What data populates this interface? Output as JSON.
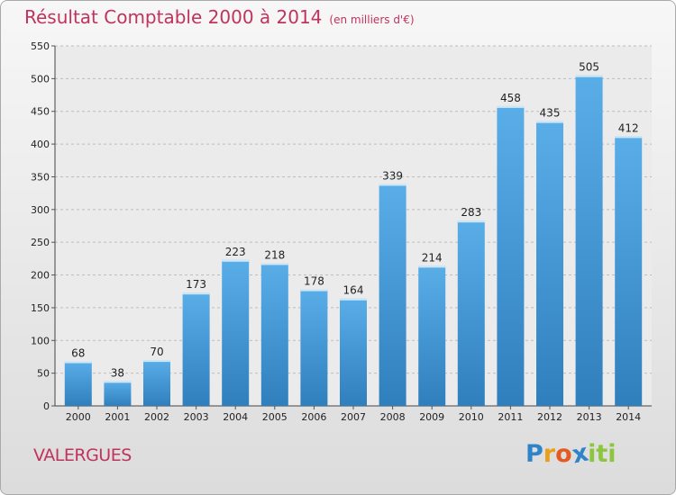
{
  "chart_data": {
    "type": "bar",
    "title": "Résultat Comptable 2000 à 2014",
    "subtitle": "(en milliers d'€)",
    "categories": [
      "2000",
      "2001",
      "2002",
      "2003",
      "2004",
      "2005",
      "2006",
      "2007",
      "2008",
      "2009",
      "2010",
      "2011",
      "2012",
      "2013",
      "2014"
    ],
    "values": [
      68,
      38,
      70,
      173,
      223,
      218,
      178,
      164,
      339,
      214,
      283,
      458,
      435,
      505,
      412
    ],
    "ylim": [
      0,
      550
    ],
    "yticks": [
      0,
      50,
      100,
      150,
      200,
      250,
      300,
      350,
      400,
      450,
      500,
      550
    ],
    "grid": true,
    "bar_color_top": "#5aaee8",
    "bar_color_bottom": "#2f7fbd"
  },
  "location": "VALERGUES",
  "logo": {
    "letters": [
      "P",
      "r",
      "o",
      "x",
      "i",
      "t",
      "i"
    ],
    "colors": [
      "#2e83c9",
      "#e8a01c",
      "#e35a22",
      "#2e83c9",
      "#8cc63e",
      "#8cc63e",
      "#8cc63e"
    ]
  }
}
